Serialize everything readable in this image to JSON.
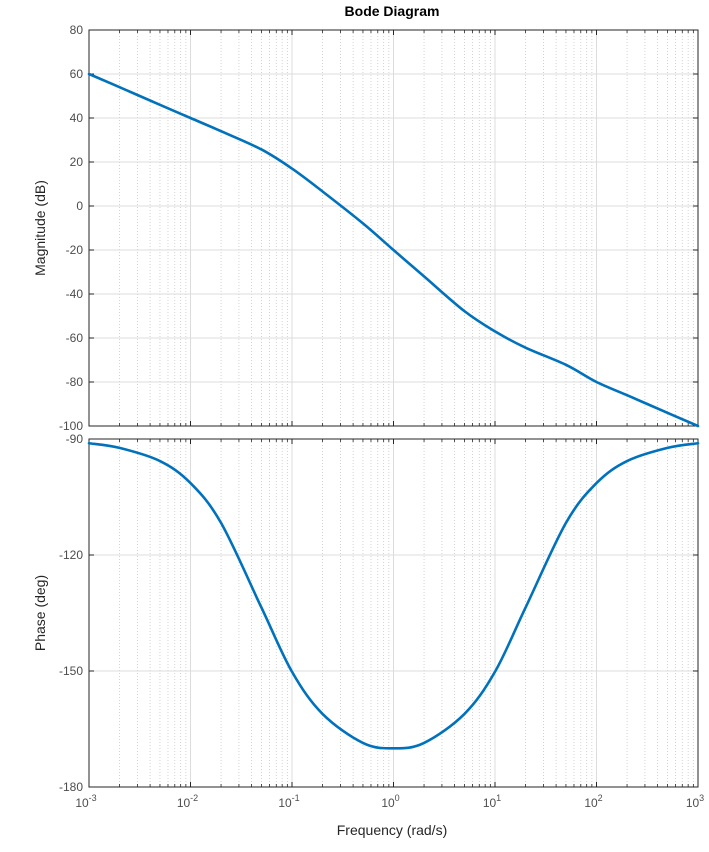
{
  "chart_data": {
    "type": "line",
    "title": "Bode Diagram",
    "xlabel": "Frequency  (rad/s)",
    "xscale": "log",
    "xlim": [
      0.001,
      1000
    ],
    "x_tick_labels": [
      {
        "base": "10",
        "exp": "-3",
        "value": 0.001
      },
      {
        "base": "10",
        "exp": "-2",
        "value": 0.01
      },
      {
        "base": "10",
        "exp": "-1",
        "value": 0.1
      },
      {
        "base": "10",
        "exp": "0",
        "value": 1
      },
      {
        "base": "10",
        "exp": "1",
        "value": 10
      },
      {
        "base": "10",
        "exp": "2",
        "value": 100
      },
      {
        "base": "10",
        "exp": "3",
        "value": 1000
      }
    ],
    "grid": true,
    "line_color": "#0072bd",
    "panels": [
      {
        "name": "magnitude",
        "ylabel": "Magnitude (dB)",
        "ylim": [
          -100,
          80
        ],
        "y_ticks": [
          80,
          60,
          40,
          20,
          0,
          -20,
          -40,
          -60,
          -80,
          -100
        ],
        "y_tick_labels": [
          "80",
          "60",
          "40",
          "20",
          "0",
          "-20",
          "-40",
          "-60",
          "-80",
          "-100"
        ],
        "x": [
          0.001,
          0.002,
          0.005,
          0.01,
          0.02,
          0.05,
          0.1,
          0.2,
          0.5,
          1,
          2,
          5,
          10,
          20,
          50,
          100,
          200,
          500,
          1000
        ],
        "y": [
          60,
          54,
          46,
          40,
          34,
          25.7,
          17,
          6.6,
          -7.9,
          -20,
          -32,
          -47.8,
          -57,
          -64.4,
          -72.2,
          -80,
          -86,
          -94,
          -100
        ]
      },
      {
        "name": "phase",
        "ylabel": "Phase (deg)",
        "ylim": [
          -180,
          -90
        ],
        "y_ticks": [
          -90,
          -120,
          -150,
          -180
        ],
        "y_tick_labels": [
          "-90",
          "-120",
          "-150",
          "-180"
        ],
        "x": [
          0.001,
          0.002,
          0.005,
          0.01,
          0.02,
          0.05,
          0.1,
          0.2,
          0.5,
          1,
          2,
          5,
          10,
          20,
          50,
          100,
          200,
          500,
          1000
        ],
        "y": [
          -91.1,
          -92.3,
          -95.7,
          -101.4,
          -111.7,
          -133.6,
          -150.2,
          -161.1,
          -168.6,
          -170.0,
          -168.6,
          -161.1,
          -150.2,
          -133.6,
          -111.7,
          -101.4,
          -95.7,
          -92.3,
          -91.1
        ]
      }
    ]
  }
}
